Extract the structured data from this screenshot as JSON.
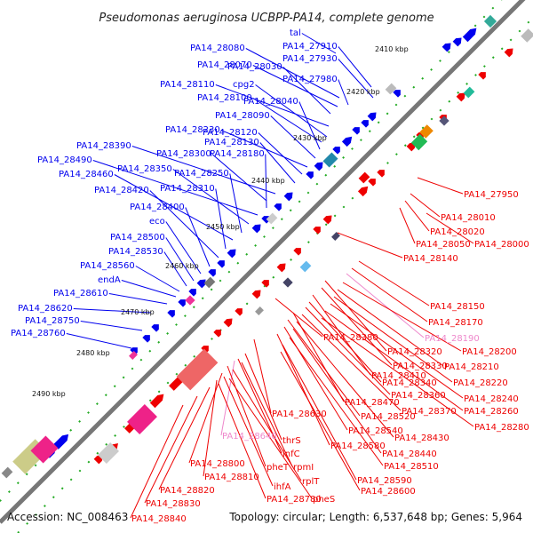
{
  "title": "Pseudomonas aeruginosa UCBPP-PA14, complete genome",
  "footer": {
    "accession": "Accession: NC_008463",
    "summary": "Topology: circular; Length: 6,537,648 bp; Genes: 5,964"
  },
  "colors": {
    "forward": "#0000ee",
    "reverse": "#ee0000",
    "highlight": "#ee88cc",
    "backbone": "#777777",
    "tick": "#119911"
  },
  "scale_labels": [
    "2410 kbp",
    "2420 kbp",
    "2430 kbp",
    "2440 kbp",
    "2450 kbp",
    "2460 kbp",
    "2470 kbp",
    "2480 kbp",
    "2490 kbp"
  ],
  "labels_forward": [
    "tal",
    "PA14_27910",
    "PA14_27930",
    "PA14_28080",
    "PA14_28070",
    "PA14_28030",
    "PA14_27980",
    "PA14_28110",
    "cpg2",
    "PA14_28100",
    "PA14_28040",
    "PA14_28090",
    "PA14_28230",
    "PA14_28120",
    "PA14_28130",
    "PA14_28390",
    "PA14_28300",
    "PA14_28180",
    "PA14_28490",
    "PA14_28350",
    "PA14_28250",
    "PA14_28460",
    "PA14_28310",
    "PA14_28420",
    "PA14_28400",
    "eco",
    "PA14_28500",
    "PA14_28530",
    "PA14_28560",
    "endA",
    "PA14_28610",
    "PA14_28620",
    "PA14_28750",
    "PA14_28760"
  ],
  "labels_reverse": [
    "PA14_27950",
    "PA14_28010",
    "PA14_28020",
    "PA14_28050",
    "PA14_28000",
    "PA14_28140",
    "PA14_28150",
    "PA14_28170",
    "PA14_28190",
    "PA14_28380",
    "PA14_28320",
    "PA14_28200",
    "PA14_28330",
    "PA14_28210",
    "PA14_28410",
    "PA14_28220",
    "PA14_28340",
    "PA14_28360",
    "PA14_28240",
    "PA14_28470",
    "PA14_28370",
    "PA14_28260",
    "PA14_28520",
    "PA14_28280",
    "PA14_28630",
    "PA14_28540",
    "PA14_28430",
    "PA14_28640",
    "thrS",
    "PA14_28580",
    "PA14_28440",
    "infC",
    "PA14_28510",
    "PA14_28800",
    "pheT",
    "rpmI",
    "PA14_28810",
    "ihfA",
    "rplT",
    "PA14_28590",
    "PA14_28820",
    "PA14_28780",
    "pheS",
    "PA14_28600",
    "PA14_28830",
    "PA14_28840"
  ]
}
